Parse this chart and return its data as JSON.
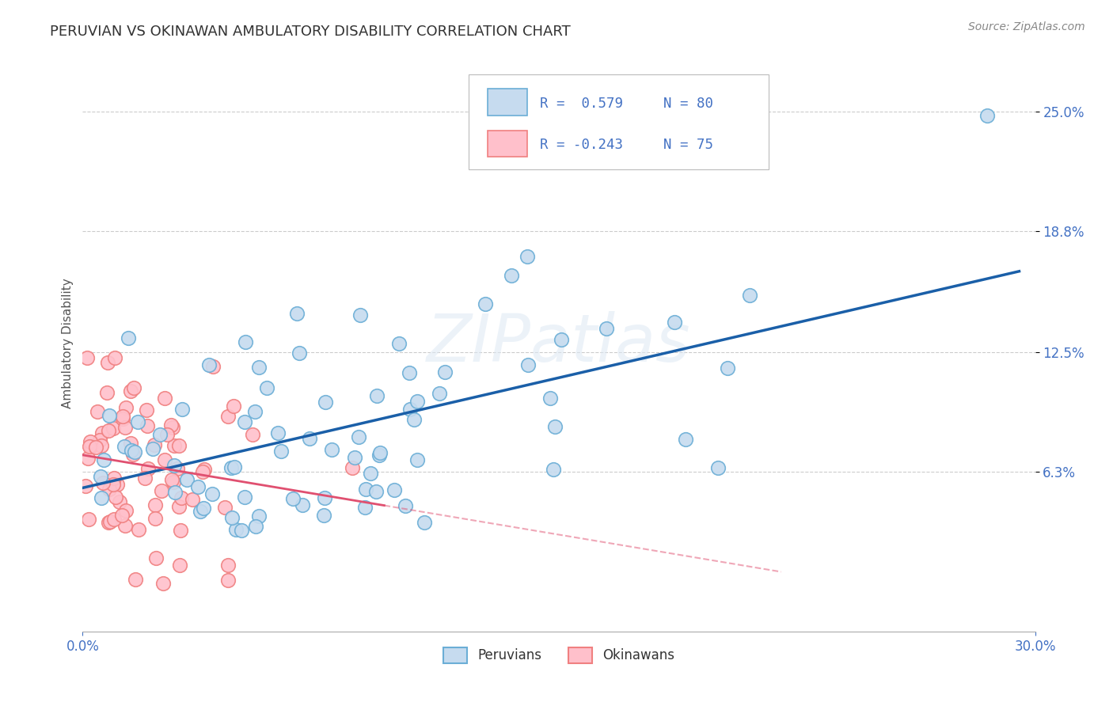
{
  "title": "PERUVIAN VS OKINAWAN AMBULATORY DISABILITY CORRELATION CHART",
  "source_text": "Source: ZipAtlas.com",
  "ylabel": "Ambulatory Disability",
  "xlim": [
    0.0,
    0.3
  ],
  "ylim": [
    -0.02,
    0.28
  ],
  "xtick_positions": [
    0.0,
    0.3
  ],
  "xtick_labels": [
    "0.0%",
    "30.0%"
  ],
  "ytick_positions": [
    0.063,
    0.125,
    0.188,
    0.25
  ],
  "ytick_labels": [
    "6.3%",
    "12.5%",
    "18.8%",
    "25.0%"
  ],
  "peruvian_edge_color": "#6baed6",
  "peruvian_face_color": "#c6dbef",
  "okinawan_edge_color": "#f08080",
  "okinawan_face_color": "#ffc0cb",
  "peruvian_line_color": "#1a5fa8",
  "okinawan_line_color": "#e05070",
  "legend_label_peruvians": "Peruvians",
  "legend_label_okinawans": "Okinawans",
  "legend_R_peruvian": "R =  0.579",
  "legend_N_peruvian": "N = 80",
  "legend_R_okinawan": "R = -0.243",
  "legend_N_okinawan": "N = 75",
  "watermark": "ZIPatlas",
  "grid_color": "#cccccc",
  "background_color": "#ffffff",
  "title_fontsize": 13,
  "axis_label_fontsize": 11,
  "tick_color": "#4472c4",
  "legend_text_color": "#4472c4"
}
